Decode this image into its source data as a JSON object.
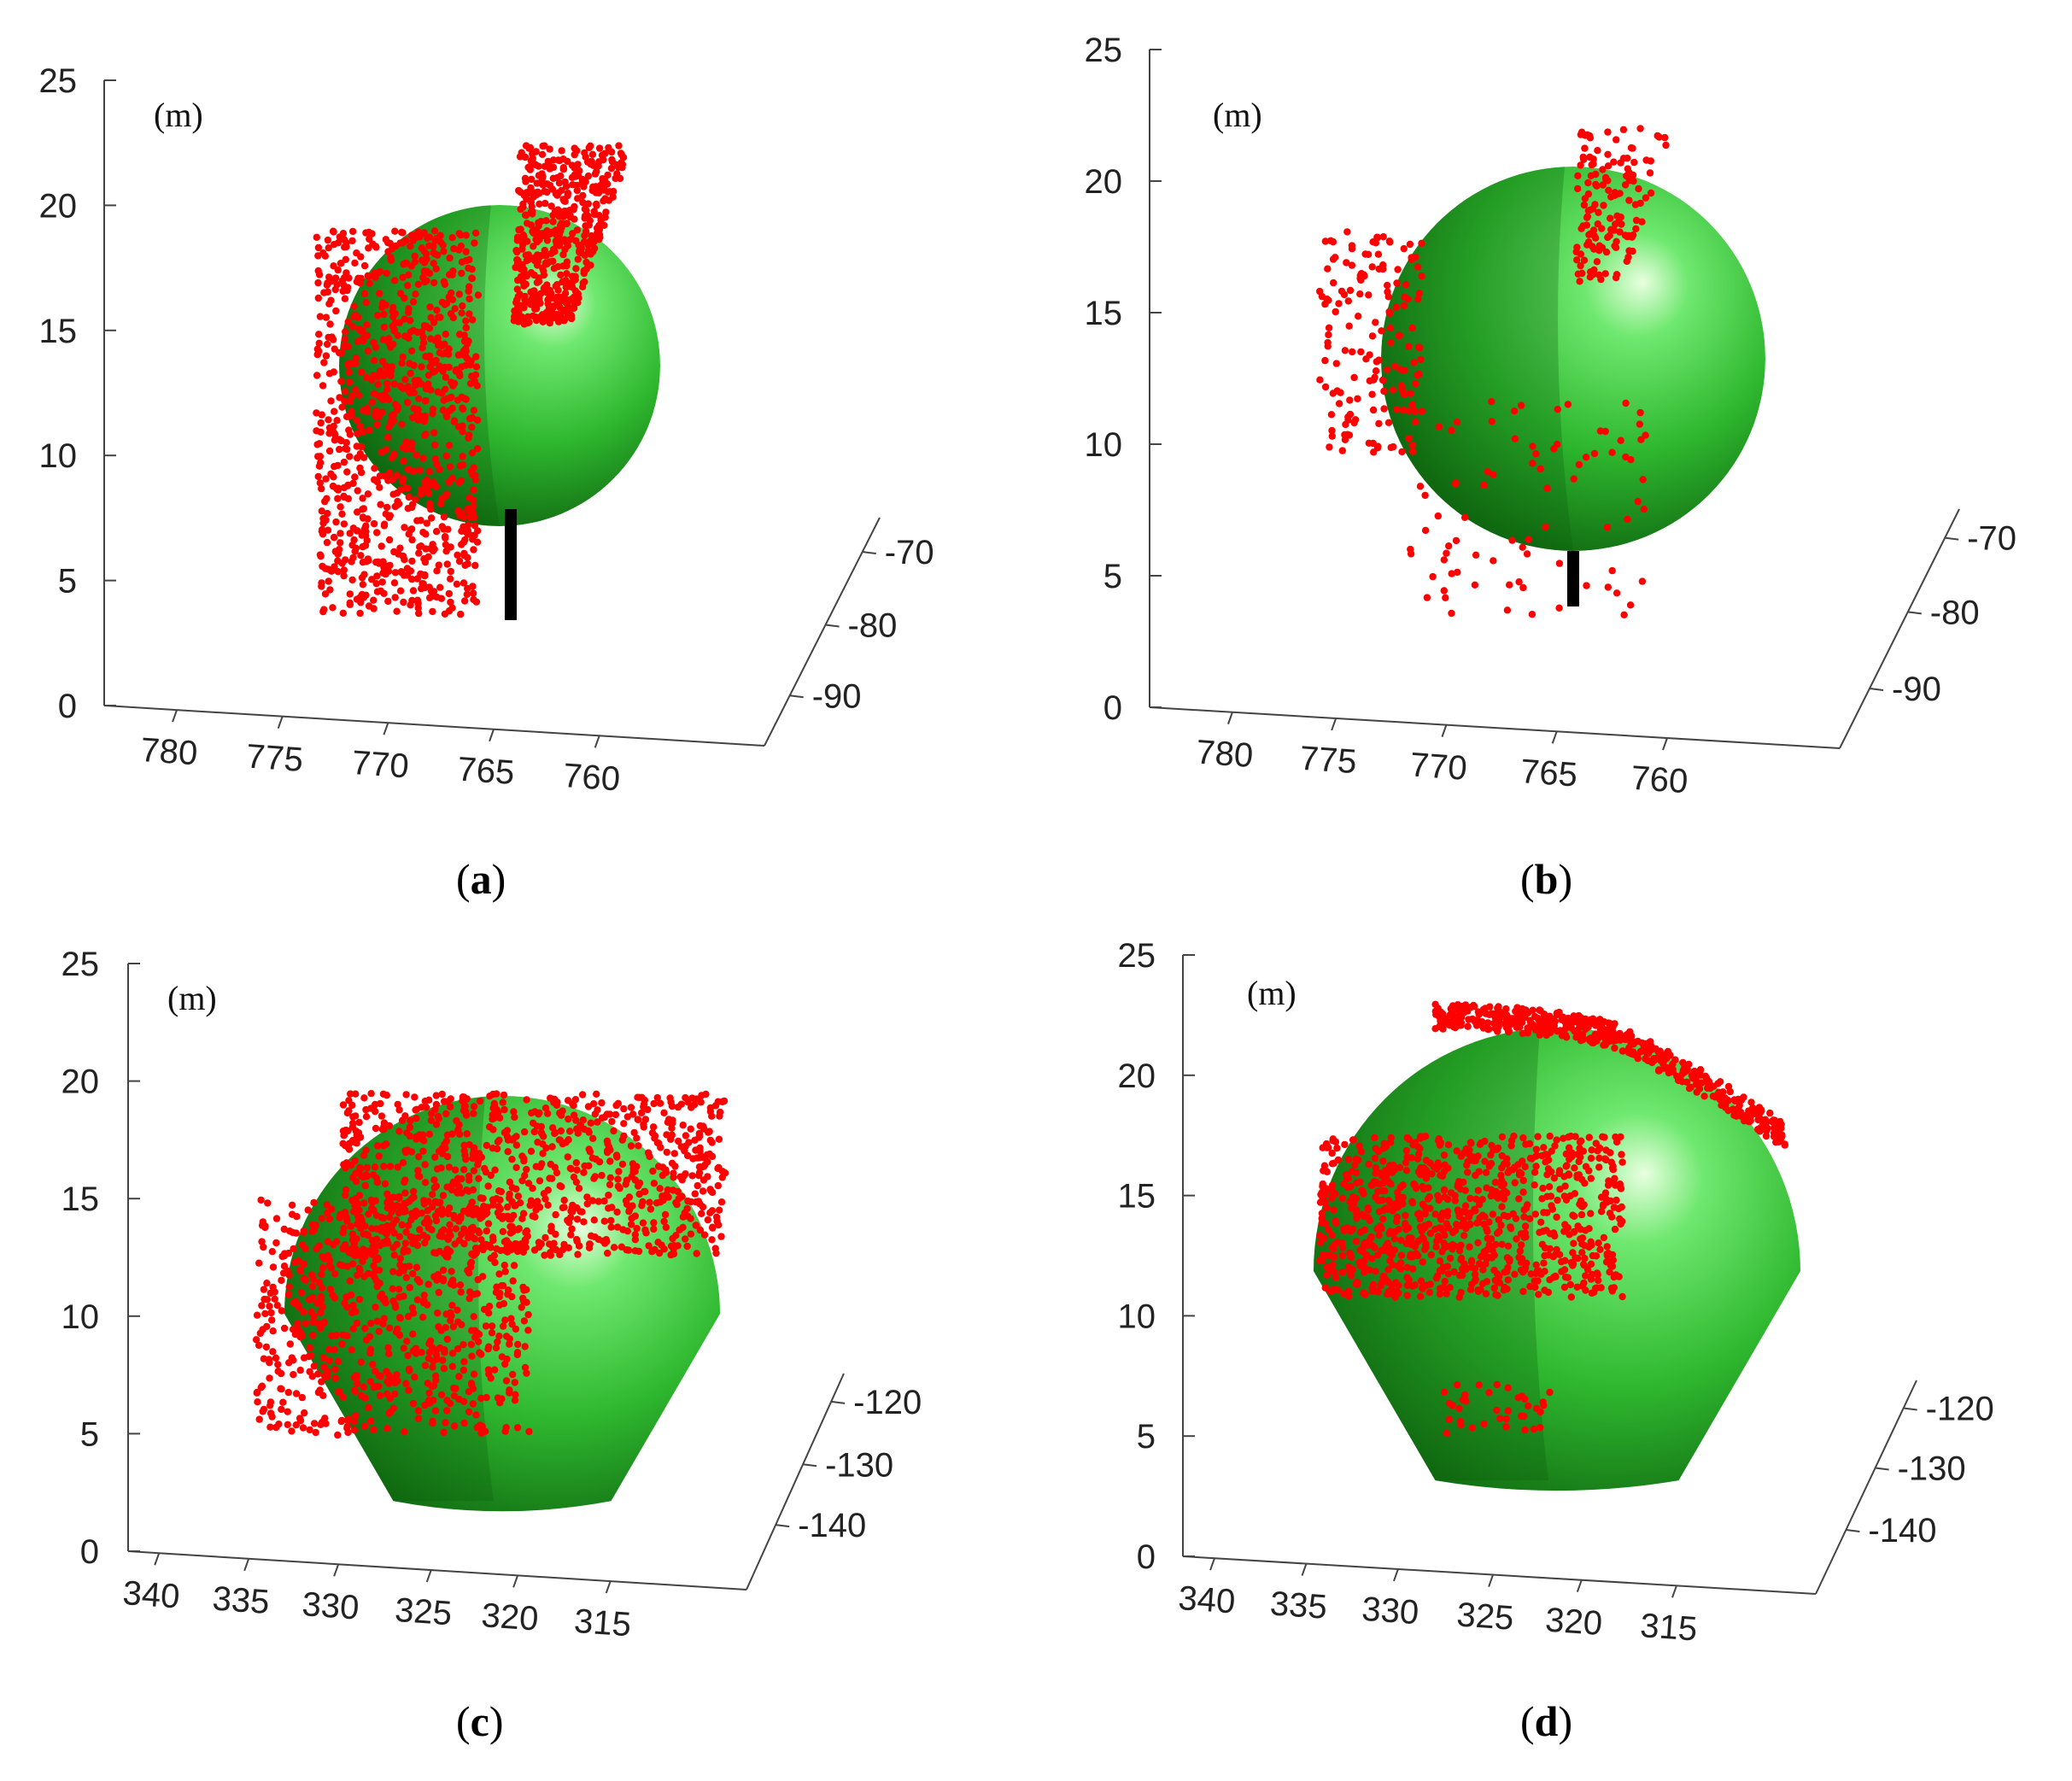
{
  "figure": {
    "panels": [
      {
        "id": "a",
        "label": "a",
        "unit": "(m)"
      },
      {
        "id": "b",
        "label": "b",
        "unit": "(m)"
      },
      {
        "id": "c",
        "label": "c",
        "unit": "(m)"
      },
      {
        "id": "d",
        "label": "d",
        "unit": "(m)"
      }
    ]
  },
  "colors": {
    "sphere_light": "#e8ffe0",
    "sphere_mid": "#2fb82f",
    "sphere_dark": "#0a5a0a",
    "points": "#ff0000",
    "trunk": "#000000",
    "axes": "#444444"
  },
  "chart_data": [
    {
      "type": "scatter",
      "panel": "a",
      "unit_label": "(m)",
      "x_axis": {
        "ticks": [
          780,
          775,
          770,
          765,
          760
        ],
        "lim": [
          758,
          782
        ]
      },
      "y_axis": {
        "ticks": [
          -70,
          -80,
          -90
        ],
        "lim": [
          -95,
          -65
        ]
      },
      "z_axis": {
        "ticks": [
          0,
          5,
          10,
          15,
          20,
          25
        ],
        "lim": [
          0,
          25
        ]
      },
      "sphere": {
        "center_x": 767.5,
        "center_z": 14.5,
        "radius_z": 5.4
      },
      "trunk": {
        "x": 767.0,
        "z_bottom": 3.5,
        "z_top": 9.2
      },
      "point_clusters": [
        {
          "desc": "left canopy",
          "x_range": [
            768,
            775
          ],
          "z_range": [
            4,
            18
          ],
          "count": 900
        },
        {
          "desc": "upper right canopy",
          "x_range": [
            764,
            770
          ],
          "z_range": [
            15,
            22
          ],
          "count": 500
        }
      ]
    },
    {
      "type": "scatter",
      "panel": "b",
      "unit_label": "(m)",
      "x_axis": {
        "ticks": [
          780,
          775,
          770,
          765,
          760
        ],
        "lim": [
          758,
          782
        ]
      },
      "y_axis": {
        "ticks": [
          -70,
          -80,
          -90
        ],
        "lim": [
          -95,
          -65
        ]
      },
      "z_axis": {
        "ticks": [
          0,
          5,
          10,
          15,
          20,
          25
        ],
        "lim": [
          0,
          25
        ]
      },
      "sphere": {
        "center_x": 766.5,
        "center_z": 14.0,
        "radius_z": 7.0
      },
      "trunk": {
        "x": 766.5,
        "z_bottom": 3.8,
        "z_top": 6.0
      },
      "point_clusters": [
        {
          "desc": "left edge canopy",
          "x_range": [
            771,
            775
          ],
          "z_range": [
            9,
            18
          ],
          "count": 160
        },
        {
          "desc": "top right canopy",
          "x_range": [
            763,
            766
          ],
          "z_range": [
            17,
            22
          ],
          "count": 140
        },
        {
          "desc": "lower points",
          "x_range": [
            764,
            771
          ],
          "z_range": [
            3.5,
            11
          ],
          "count": 120
        }
      ]
    },
    {
      "type": "scatter",
      "panel": "c",
      "unit_label": "(m)",
      "x_axis": {
        "ticks": [
          340,
          335,
          330,
          325,
          320,
          315
        ],
        "lim": [
          315,
          340
        ]
      },
      "y_axis": {
        "ticks": [
          -120,
          -130,
          -140
        ],
        "lim": [
          -145,
          -115
        ]
      },
      "z_axis": {
        "ticks": [
          0,
          5,
          10,
          15,
          20,
          25
        ],
        "lim": [
          0,
          25
        ]
      },
      "sphere": {
        "center_x": 327.0,
        "center_z": 11.0,
        "radius_z": 8.0
      },
      "trunk": null,
      "point_clusters": [
        {
          "desc": "top cap canopy",
          "x_range": [
            322,
            332
          ],
          "z_range": [
            13,
            19
          ],
          "count": 900
        },
        {
          "desc": "left canopy",
          "x_range": [
            328,
            336
          ],
          "z_range": [
            5,
            15
          ],
          "count": 700
        }
      ]
    },
    {
      "type": "scatter",
      "panel": "d",
      "unit_label": "(m)",
      "x_axis": {
        "ticks": [
          340,
          335,
          330,
          325,
          320,
          315
        ],
        "lim": [
          315,
          340
        ]
      },
      "y_axis": {
        "ticks": [
          -120,
          -130,
          -140
        ],
        "lim": [
          -145,
          -115
        ]
      },
      "z_axis": {
        "ticks": [
          0,
          5,
          10,
          15,
          20,
          25
        ],
        "lim": [
          0,
          25
        ]
      },
      "sphere": {
        "center_x": 326.5,
        "center_z": 12.5,
        "radius_z": 9.0
      },
      "trunk": null,
      "point_clusters": [
        {
          "desc": "top rim",
          "x_range": [
            318,
            327
          ],
          "z_range": [
            18,
            21.5
          ],
          "count": 500
        },
        {
          "desc": "left mid canopy",
          "x_range": [
            325,
            336
          ],
          "z_range": [
            10,
            17
          ],
          "count": 900
        },
        {
          "desc": "lower fragments",
          "x_range": [
            326,
            331
          ],
          "z_range": [
            5,
            9
          ],
          "count": 60
        }
      ]
    }
  ]
}
